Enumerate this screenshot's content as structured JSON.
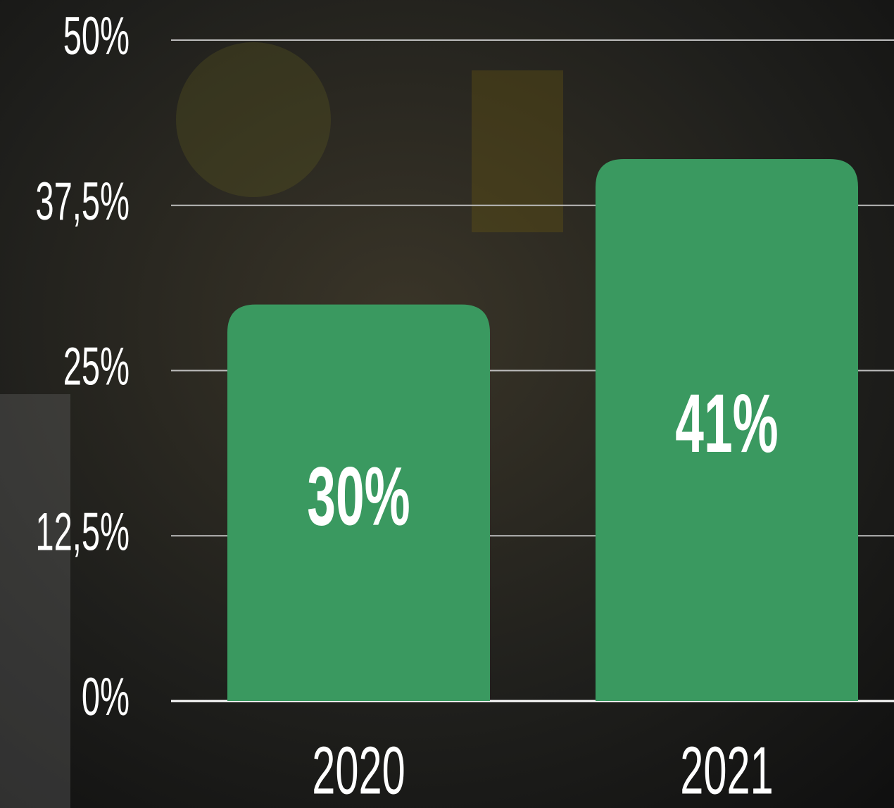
{
  "chart_data": {
    "type": "bar",
    "categories": [
      "2020",
      "2021"
    ],
    "values": [
      30,
      41
    ],
    "value_labels": [
      "30%",
      "41%"
    ],
    "color": "#3a9960",
    "ylim": [
      0,
      50
    ],
    "yticks": [
      {
        "value": 0,
        "label": "0%"
      },
      {
        "value": 12.5,
        "label": "12,5%"
      },
      {
        "value": 25,
        "label": "25%"
      },
      {
        "value": 37.5,
        "label": "37,5%"
      },
      {
        "value": 50,
        "label": "50%"
      }
    ],
    "grid": true
  }
}
